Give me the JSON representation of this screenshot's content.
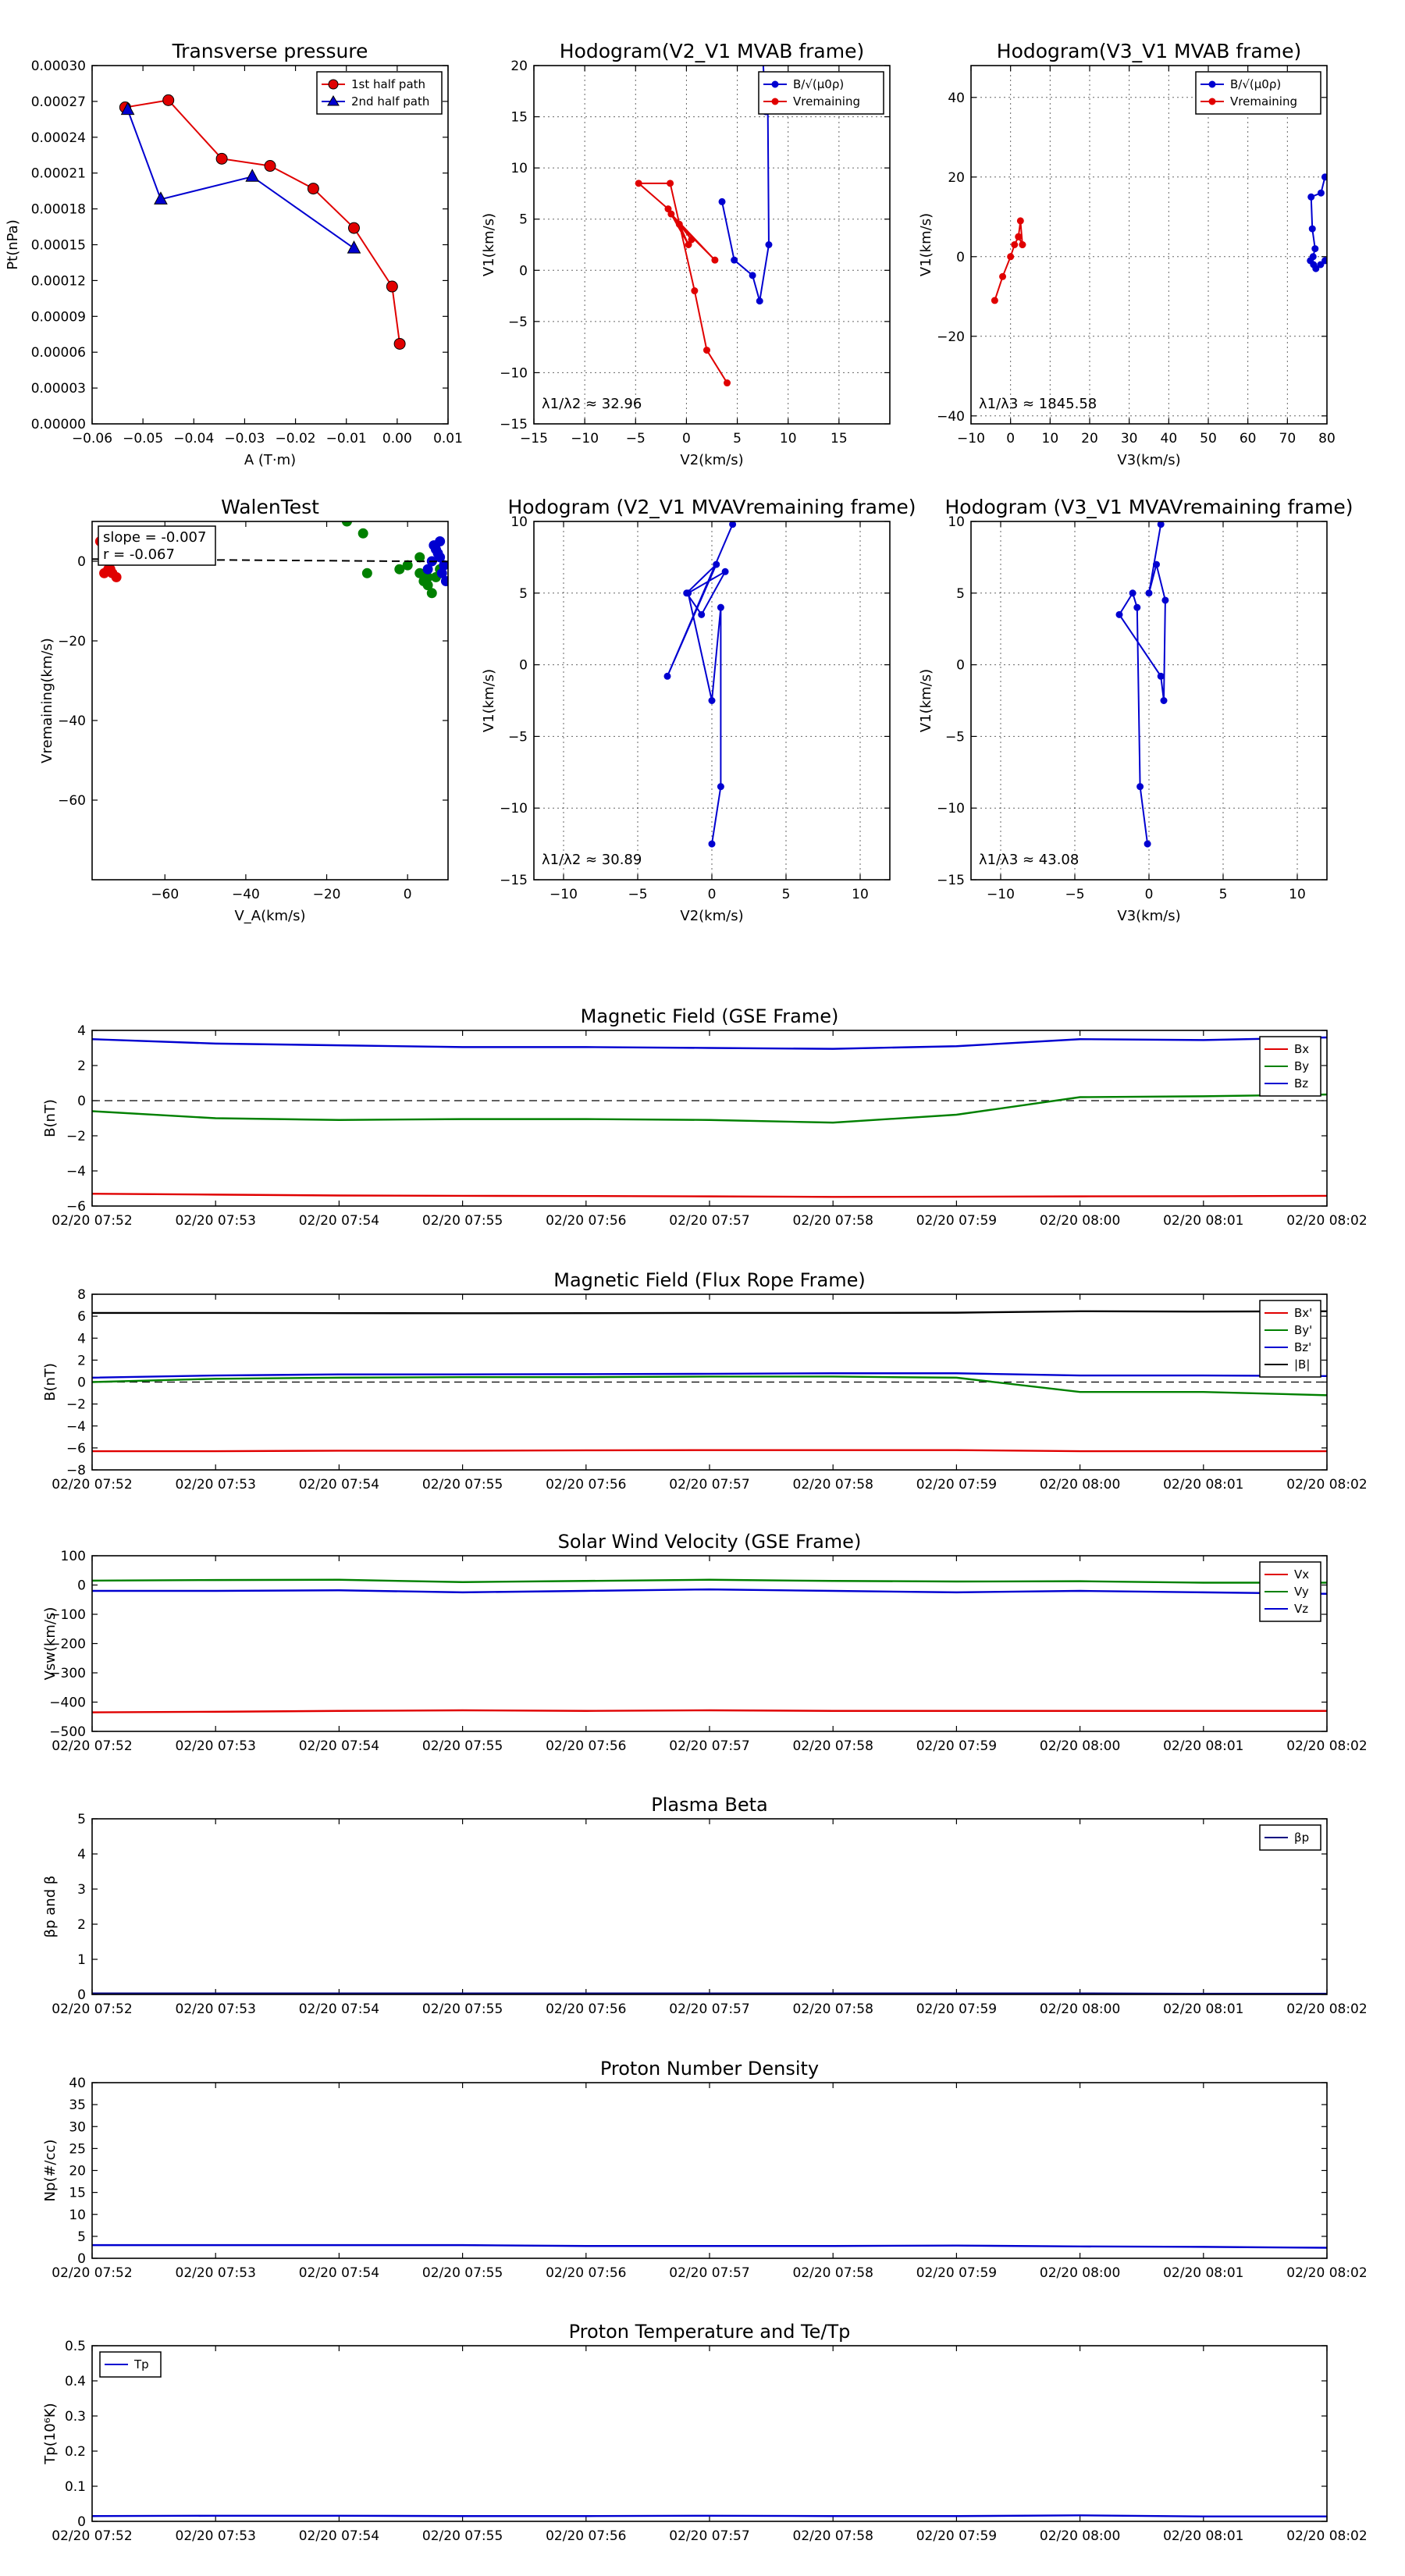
{
  "chart_data": [
    {
      "id": "p1",
      "type": "line",
      "title": "Transverse pressure",
      "xlabel": "A (T·m)",
      "ylabel": "Pt(nPa)",
      "xlim": [
        -0.06,
        0.01
      ],
      "ylim": [
        0,
        0.0003
      ],
      "xticks": [
        -0.06,
        -0.05,
        -0.04,
        -0.03,
        -0.02,
        -0.01,
        0,
        0.01
      ],
      "xticklabels": [
        "−0.06",
        "−0.05",
        "−0.04",
        "−0.03",
        "−0.02",
        "−0.01",
        "0.00",
        "0.01"
      ],
      "yticks": [
        0,
        3e-05,
        6e-05,
        9e-05,
        0.00012,
        0.00015,
        0.00018,
        0.00021,
        0.00024,
        0.00027,
        0.0003
      ],
      "yticklabels": [
        "0.00000",
        "0.00003",
        "0.00006",
        "0.00009",
        "0.00012",
        "0.00015",
        "0.00018",
        "0.00021",
        "0.00024",
        "0.00027",
        "0.00030"
      ],
      "legend": "top-right",
      "series": [
        {
          "name": "1st half path",
          "color": "#e00000",
          "marker": "circle",
          "x": [
            0.0005,
            -0.001,
            -0.0085,
            -0.0165,
            -0.025,
            -0.0345,
            -0.045,
            -0.0535
          ],
          "y": [
            6.7e-05,
            0.000115,
            0.000164,
            0.000197,
            0.000216,
            0.000222,
            0.000271,
            0.000265
          ]
        },
        {
          "name": "2nd half path",
          "color": "#0000d0",
          "marker": "triangle",
          "x": [
            -0.0085,
            -0.0285,
            -0.0465,
            -0.053
          ],
          "y": [
            0.000147,
            0.000207,
            0.000188,
            0.000263
          ]
        }
      ]
    },
    {
      "id": "p2",
      "type": "line",
      "title": "Hodogram(V2_V1 MVAB frame)",
      "xlabel": "V2(km/s)",
      "ylabel": "V1(km/s)",
      "xlim": [
        -15,
        20
      ],
      "ylim": [
        -15,
        20
      ],
      "grid": true,
      "xticks": [
        -15,
        -10,
        -5,
        0,
        5,
        10,
        15
      ],
      "yticks": [
        -15,
        -10,
        -5,
        0,
        5,
        10,
        15,
        20
      ],
      "legend": "top-right",
      "annotation": "λ1/λ2 ≈ 32.96",
      "series": [
        {
          "name": "B/√(μ0ρ)",
          "color": "#0000d0",
          "x": [
            7.5,
            7.8,
            8.0,
            8.1,
            7.2,
            6.5,
            4.7,
            3.5
          ],
          "y": [
            21.0,
            15.5,
            16.0,
            2.5,
            -3.0,
            -0.5,
            1.0,
            6.7
          ]
        },
        {
          "name": "Vremaining",
          "color": "#e00000",
          "x": [
            4.0,
            2.0,
            0.8,
            -1.6,
            -4.7,
            -1.8,
            0.2,
            -0.7,
            2.8,
            -1.5,
            0.5
          ],
          "y": [
            -11,
            -7.8,
            -2.0,
            8.5,
            8.5,
            6.0,
            2.5,
            4.5,
            1.0,
            5.5,
            3.0
          ]
        }
      ]
    },
    {
      "id": "p3",
      "type": "line",
      "title": "Hodogram(V3_V1 MVAB frame)",
      "xlabel": "V3(km/s)",
      "ylabel": "V1(km/s)",
      "xlim": [
        -10,
        80
      ],
      "ylim": [
        -42,
        48
      ],
      "grid": true,
      "xticks": [
        -10,
        0,
        10,
        20,
        30,
        40,
        50,
        60,
        70,
        80
      ],
      "yticks": [
        -40,
        -20,
        0,
        20,
        40
      ],
      "legend": "top-right",
      "annotation": "λ1/λ3 ≈ 1845.58",
      "series": [
        {
          "name": "B/√(μ0ρ)",
          "color": "#0000d0",
          "x": [
            79.5,
            78.5,
            76,
            76.3,
            77,
            76.5,
            75.8,
            76.6,
            77.2,
            78.4,
            79.5
          ],
          "y": [
            20,
            16,
            15,
            7,
            2,
            0,
            -1,
            -2,
            -3,
            -2,
            -1
          ]
        },
        {
          "name": "Vremaining",
          "color": "#e00000",
          "x": [
            -4,
            -2,
            0,
            1,
            2,
            2.5,
            3,
            2,
            3
          ],
          "y": [
            -11,
            -5,
            0,
            3,
            5,
            9,
            3,
            5,
            3
          ]
        }
      ]
    },
    {
      "id": "p4",
      "type": "scatter",
      "title": "WalenTest",
      "xlabel": "V_A(km/s)",
      "ylabel": "Vremaining(km/s)",
      "xlim": [
        -78,
        10
      ],
      "ylim": [
        -80,
        10
      ],
      "xticks": [
        -60,
        -40,
        -20,
        0
      ],
      "yticks": [
        -60,
        -40,
        -20,
        0
      ],
      "annotation_lines": [
        "slope = -0.007",
        "r = -0.067"
      ],
      "fit": {
        "slope": -0.007,
        "x": [
          -78,
          10
        ]
      },
      "series": [
        {
          "name": "",
          "color": "#e00000",
          "x": [
            -76,
            -75,
            -74,
            -73,
            -72,
            -74.5,
            -73.5
          ],
          "y": [
            5,
            -3,
            -2,
            -3,
            -4,
            2,
            -2
          ]
        },
        {
          "name": "",
          "color": "#008000",
          "x": [
            -15,
            -11,
            -10,
            -2,
            0,
            3,
            4,
            5,
            6,
            7,
            8,
            3,
            5
          ],
          "y": [
            10,
            7,
            -3,
            -2,
            -1,
            -3,
            -5,
            -6,
            -8,
            -4,
            -2,
            1,
            -4
          ]
        },
        {
          "name": "",
          "color": "#0000d0",
          "x": [
            5,
            6,
            7,
            8,
            9,
            8.5,
            7.5,
            6.5,
            9.5,
            8
          ],
          "y": [
            -2,
            0,
            3,
            5,
            -1,
            -3,
            2,
            4,
            -5,
            1
          ]
        }
      ]
    },
    {
      "id": "p5",
      "type": "line",
      "title": "Hodogram (V2_V1 MVAVremaining frame)",
      "xlabel": "V2(km/s)",
      "ylabel": "V1(km/s)",
      "xlim": [
        -12,
        12
      ],
      "ylim": [
        -15,
        10
      ],
      "grid": true,
      "xticks": [
        -10,
        -5,
        0,
        5,
        10
      ],
      "yticks": [
        -15,
        -10,
        -5,
        0,
        5,
        10
      ],
      "annotation": "λ1/λ2 ≈ 30.89",
      "series": [
        {
          "name": "",
          "color": "#0000d0",
          "x": [
            0.0,
            0.6,
            0.6,
            0.0,
            -1.6,
            0.9,
            -0.7,
            -1.7,
            0.3,
            -3.0,
            1.4
          ],
          "y": [
            -12.5,
            -8.5,
            4.0,
            -2.5,
            5.0,
            6.5,
            3.5,
            5.0,
            7.0,
            -0.8,
            9.8
          ]
        }
      ]
    },
    {
      "id": "p6",
      "type": "line",
      "title": "Hodogram (V3_V1 MVAVremaining frame)",
      "xlabel": "V3(km/s)",
      "ylabel": "V1(km/s)",
      "xlim": [
        -12,
        12
      ],
      "ylim": [
        -15,
        10
      ],
      "grid": true,
      "xticks": [
        -10,
        -5,
        0,
        5,
        10
      ],
      "yticks": [
        -15,
        -10,
        -5,
        0,
        5,
        10
      ],
      "annotation": "λ1/λ3 ≈ 43.08",
      "series": [
        {
          "name": "",
          "color": "#0000d0",
          "x": [
            -0.1,
            -0.6,
            -0.8,
            -1.1,
            -2.0,
            0.8,
            1.0,
            1.1,
            0.5,
            0.0,
            0.8
          ],
          "y": [
            -12.5,
            -8.5,
            4.0,
            5.0,
            3.5,
            -0.8,
            -2.5,
            4.5,
            7.0,
            5.0,
            9.8
          ]
        }
      ]
    },
    {
      "id": "t1",
      "type": "line",
      "title": "Magnetic Field (GSE Frame)",
      "ylabel": "B(nT)",
      "ylim": [
        -6,
        4
      ],
      "yticks": [
        -6,
        -4,
        -2,
        0,
        2,
        4
      ],
      "zeroline": true,
      "legend": "top-right",
      "series": [
        {
          "name": "Bx",
          "color": "#e00000",
          "values": [
            -5.3,
            -5.35,
            -5.4,
            -5.42,
            -5.43,
            -5.45,
            -5.48,
            -5.47,
            -5.45,
            -5.44,
            -5.42
          ]
        },
        {
          "name": "By",
          "color": "#008000",
          "values": [
            -0.6,
            -1.0,
            -1.1,
            -1.05,
            -1.05,
            -1.1,
            -1.25,
            -0.8,
            0.2,
            0.25,
            0.35
          ]
        },
        {
          "name": "Bz",
          "color": "#0000d0",
          "values": [
            3.5,
            3.25,
            3.15,
            3.05,
            3.05,
            3.0,
            2.95,
            3.1,
            3.5,
            3.45,
            3.6
          ]
        }
      ]
    },
    {
      "id": "t2",
      "type": "line",
      "title": "Magnetic Field (Flux Rope Frame)",
      "ylabel": "B(nT)",
      "ylim": [
        -8,
        8
      ],
      "yticks": [
        -8,
        -6,
        -4,
        -2,
        0,
        2,
        4,
        6,
        8
      ],
      "zeroline": true,
      "legend": "top-right",
      "series": [
        {
          "name": "Bx'",
          "color": "#e00000",
          "values": [
            -6.3,
            -6.3,
            -6.25,
            -6.25,
            -6.22,
            -6.2,
            -6.2,
            -6.2,
            -6.3,
            -6.3,
            -6.3
          ]
        },
        {
          "name": "By'",
          "color": "#008000",
          "values": [
            0.0,
            0.3,
            0.4,
            0.45,
            0.45,
            0.5,
            0.5,
            0.4,
            -0.9,
            -0.9,
            -1.2
          ]
        },
        {
          "name": "Bz'",
          "color": "#0000d0",
          "values": [
            0.4,
            0.6,
            0.7,
            0.7,
            0.72,
            0.75,
            0.8,
            0.8,
            0.6,
            0.6,
            0.55
          ]
        },
        {
          "name": "|B|",
          "color": "#000000",
          "values": [
            6.3,
            6.3,
            6.28,
            6.27,
            6.28,
            6.3,
            6.3,
            6.32,
            6.45,
            6.42,
            6.45
          ]
        }
      ]
    },
    {
      "id": "t3",
      "type": "line",
      "title": "Solar Wind Velocity (GSE Frame)",
      "ylabel": "Vsw(km/s)",
      "ylim": [
        -500,
        100
      ],
      "yticks": [
        -500,
        -400,
        -300,
        -200,
        -100,
        0,
        100
      ],
      "legend": "top-right",
      "series": [
        {
          "name": "Vx",
          "color": "#e00000",
          "values": [
            -435,
            -433,
            -430,
            -428,
            -430,
            -428,
            -430,
            -430,
            -430,
            -430,
            -430
          ]
        },
        {
          "name": "Vy",
          "color": "#008000",
          "values": [
            15,
            17,
            18,
            10,
            14,
            18,
            14,
            12,
            13,
            8,
            8
          ]
        },
        {
          "name": "Vz",
          "color": "#0000d0",
          "values": [
            -20,
            -20,
            -18,
            -25,
            -20,
            -15,
            -20,
            -25,
            -20,
            -25,
            -30
          ]
        }
      ]
    },
    {
      "id": "t4",
      "type": "line",
      "title": "Plasma Beta",
      "ylabel": "βp and β",
      "ylim": [
        0,
        5
      ],
      "yticks": [
        0,
        1,
        2,
        3,
        4,
        5
      ],
      "legend": "top-right",
      "series": [
        {
          "name": "βp",
          "color": "#000080",
          "values": [
            0.03,
            0.03,
            0.03,
            0.03,
            0.03,
            0.03,
            0.03,
            0.03,
            0.03,
            0.02,
            0.02
          ]
        }
      ]
    },
    {
      "id": "t5",
      "type": "line",
      "title": "Proton Number Density",
      "ylabel": "Np(#/cc)",
      "ylim": [
        0,
        40
      ],
      "yticks": [
        0,
        5,
        10,
        15,
        20,
        25,
        30,
        35,
        40
      ],
      "series": [
        {
          "name": "",
          "color": "#0000d0",
          "values": [
            3.0,
            3.0,
            3.0,
            3.0,
            2.8,
            2.8,
            2.8,
            2.9,
            2.7,
            2.6,
            2.4
          ]
        }
      ]
    },
    {
      "id": "t6",
      "type": "line",
      "title": "Proton Temperature and Te/Tp",
      "ylabel": "Tp(10⁶K)",
      "ylim": [
        0,
        0.5
      ],
      "yticks": [
        0,
        0.1,
        0.2,
        0.3,
        0.4,
        0.5
      ],
      "legend": "top-left",
      "series": [
        {
          "name": "Tp",
          "color": "#0000d0",
          "values": [
            0.015,
            0.016,
            0.016,
            0.015,
            0.015,
            0.016,
            0.015,
            0.015,
            0.017,
            0.014,
            0.014
          ]
        }
      ]
    }
  ],
  "time_axis": {
    "ticklabels": [
      "02/20 07:52",
      "02/20 07:53",
      "02/20 07:54",
      "02/20 07:55",
      "02/20 07:56",
      "02/20 07:57",
      "02/20 07:58",
      "02/20 07:59",
      "02/20 08:00",
      "02/20 08:01",
      "02/20 08:02"
    ]
  }
}
